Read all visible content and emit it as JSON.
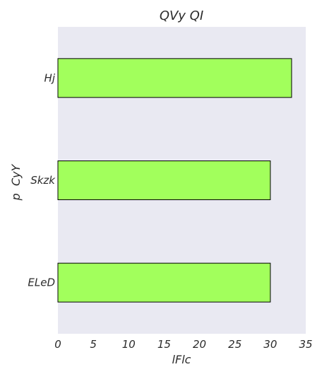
{
  "chart_data": {
    "type": "bar",
    "orientation": "horizontal",
    "title": "QVy QI",
    "xlabel": "lFlc",
    "ylabel": "p  CyY",
    "categories": [
      "Hj",
      "Skzk",
      "ELeD"
    ],
    "values": [
      33,
      30,
      30
    ],
    "xlim": [
      0,
      35
    ],
    "xticks": [
      0,
      5,
      10,
      15,
      20,
      25,
      30,
      35
    ],
    "grid": false,
    "legend": "none",
    "colors": {
      "bar_fill": "#a2ff5c",
      "bar_edge": "#000000",
      "plot_background": "#e9e9f2",
      "text": "#2b2b2b"
    }
  }
}
